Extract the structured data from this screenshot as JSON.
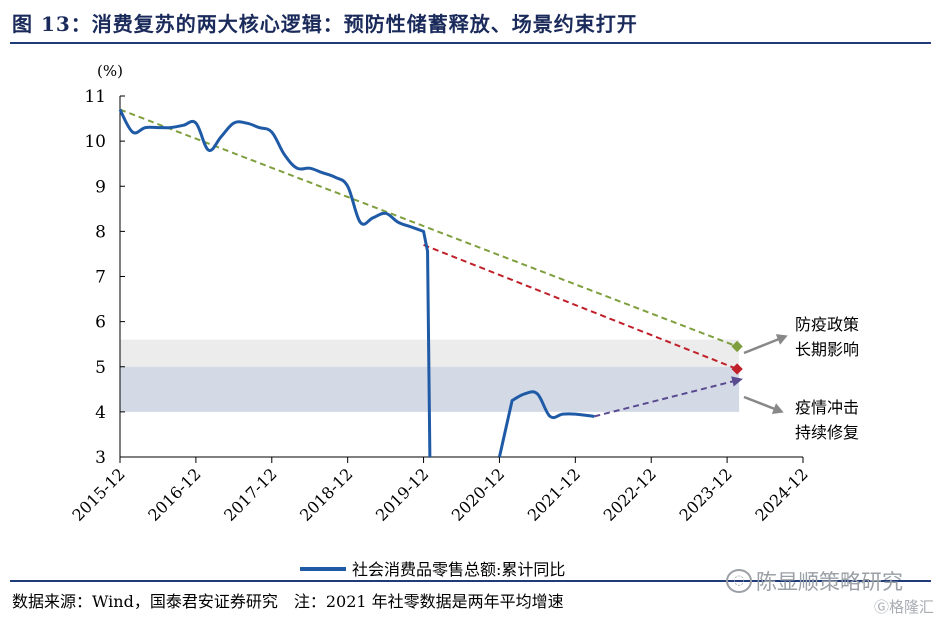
{
  "title": "图 13：消费复苏的两大核心逻辑：预防性储蓄释放、场景约束打开",
  "chart_data": {
    "type": "line",
    "title": "图 13：消费复苏的两大核心逻辑：预防性储蓄释放、场景约束打开",
    "ylabel": "(%)",
    "xlabel": "",
    "ylim": [
      3,
      11
    ],
    "yticks": [
      3,
      4,
      5,
      6,
      7,
      8,
      9,
      10,
      11
    ],
    "xticks": [
      "2015-12",
      "2016-12",
      "2017-12",
      "2018-12",
      "2019-12",
      "2020-12",
      "2021-12",
      "2022-12",
      "2023-12",
      "2024-12"
    ],
    "grid": false,
    "legend_position": "bottom",
    "series": [
      {
        "name": "社会消费品零售总额:累计同比",
        "color": "#1f5aa6",
        "segments": [
          [
            [
              "2015-12",
              10.7
            ],
            [
              "2016-02",
              10.2
            ],
            [
              "2016-04",
              10.3
            ],
            [
              "2016-06",
              10.3
            ],
            [
              "2016-08",
              10.3
            ],
            [
              "2016-10",
              10.35
            ],
            [
              "2016-12",
              10.4
            ],
            [
              "2017-02",
              9.8
            ],
            [
              "2017-04",
              10.1
            ],
            [
              "2017-06",
              10.4
            ],
            [
              "2017-08",
              10.4
            ],
            [
              "2017-10",
              10.3
            ],
            [
              "2017-12",
              10.2
            ],
            [
              "2018-02",
              9.7
            ],
            [
              "2018-04",
              9.4
            ],
            [
              "2018-06",
              9.4
            ],
            [
              "2018-08",
              9.3
            ],
            [
              "2018-10",
              9.2
            ],
            [
              "2018-12",
              9.0
            ],
            [
              "2019-02",
              8.2
            ],
            [
              "2019-04",
              8.3
            ],
            [
              "2019-06",
              8.4
            ],
            [
              "2019-08",
              8.2
            ],
            [
              "2019-10",
              8.1
            ],
            [
              "2019-12",
              8.0
            ],
            [
              "2020-01",
              3.0
            ]
          ],
          [
            [
              "2020-12",
              3.0
            ],
            [
              "2021-02",
              4.25
            ],
            [
              "2021-04",
              4.4
            ],
            [
              "2021-06",
              4.4
            ],
            [
              "2021-08",
              3.9
            ],
            [
              "2021-10",
              3.95
            ],
            [
              "2021-12",
              3.95
            ],
            [
              "2022-03",
              3.9
            ]
          ]
        ]
      }
    ],
    "trend_lines": [
      {
        "color": "#7f9f3f",
        "from": [
          "2015-12",
          10.7
        ],
        "to": [
          "2023-12",
          5.45
        ]
      },
      {
        "color": "#c0202a",
        "from": [
          "2019-12",
          7.7
        ],
        "to": [
          "2023-12",
          4.95
        ]
      },
      {
        "color": "#5a4a8f",
        "from": [
          "2022-03",
          3.9
        ],
        "to": [
          "2023-12",
          4.7
        ]
      }
    ],
    "bands": [
      {
        "color": "#ececec",
        "from": 5.0,
        "to": 5.6
      },
      {
        "color": "#d3dae6",
        "from": 4.0,
        "to": 5.0
      }
    ],
    "annotations": [
      {
        "line1": "防疫政策",
        "line2": "长期影响"
      },
      {
        "line1": "疫情冲击",
        "line2": "持续修复"
      }
    ]
  },
  "legend": {
    "label": "社会消费品零售总额:累计同比"
  },
  "source": "数据来源：Wind，国泰君安证券研究　注：2021 年社零数据是两年平均增速",
  "watermark": {
    "text": "陈显顺策略研究",
    "icon": "wechat-icon"
  },
  "logo": {
    "text": "格隆汇",
    "icon": "g-logo-icon"
  }
}
